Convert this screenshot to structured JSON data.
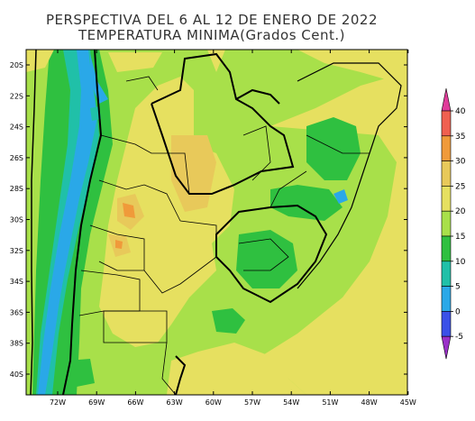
{
  "title_line1": "PERSPECTIVA DEL 6 AL 12 DE ENERO DE 2022",
  "title_line2": "TEMPERATURA MINIMA(Grados Cent.)",
  "lat_labels": [
    "20S",
    "22S",
    "24S",
    "26S",
    "28S",
    "30S",
    "32S",
    "34S",
    "36S",
    "38S",
    "40S"
  ],
  "lon_labels": [
    "72W",
    "69W",
    "66W",
    "63W",
    "60W",
    "57W",
    "54W",
    "51W",
    "48W",
    "45W"
  ],
  "legend": {
    "ticks": [
      "40",
      "35",
      "30",
      "25",
      "20",
      "15",
      "10",
      "5",
      "0",
      "-5"
    ],
    "colors": {
      "above40": "#e03c9a",
      "35_40": "#f06050",
      "30_35": "#f09a3a",
      "25_30": "#e8c95a",
      "20_25": "#e6e060",
      "15_20": "#a8e04a",
      "10_15": "#2fc040",
      "5_10": "#20c0a8",
      "0_5": "#2aa8e8",
      "m5_0": "#3a50e8",
      "below_m5": "#9a30c8"
    }
  }
}
